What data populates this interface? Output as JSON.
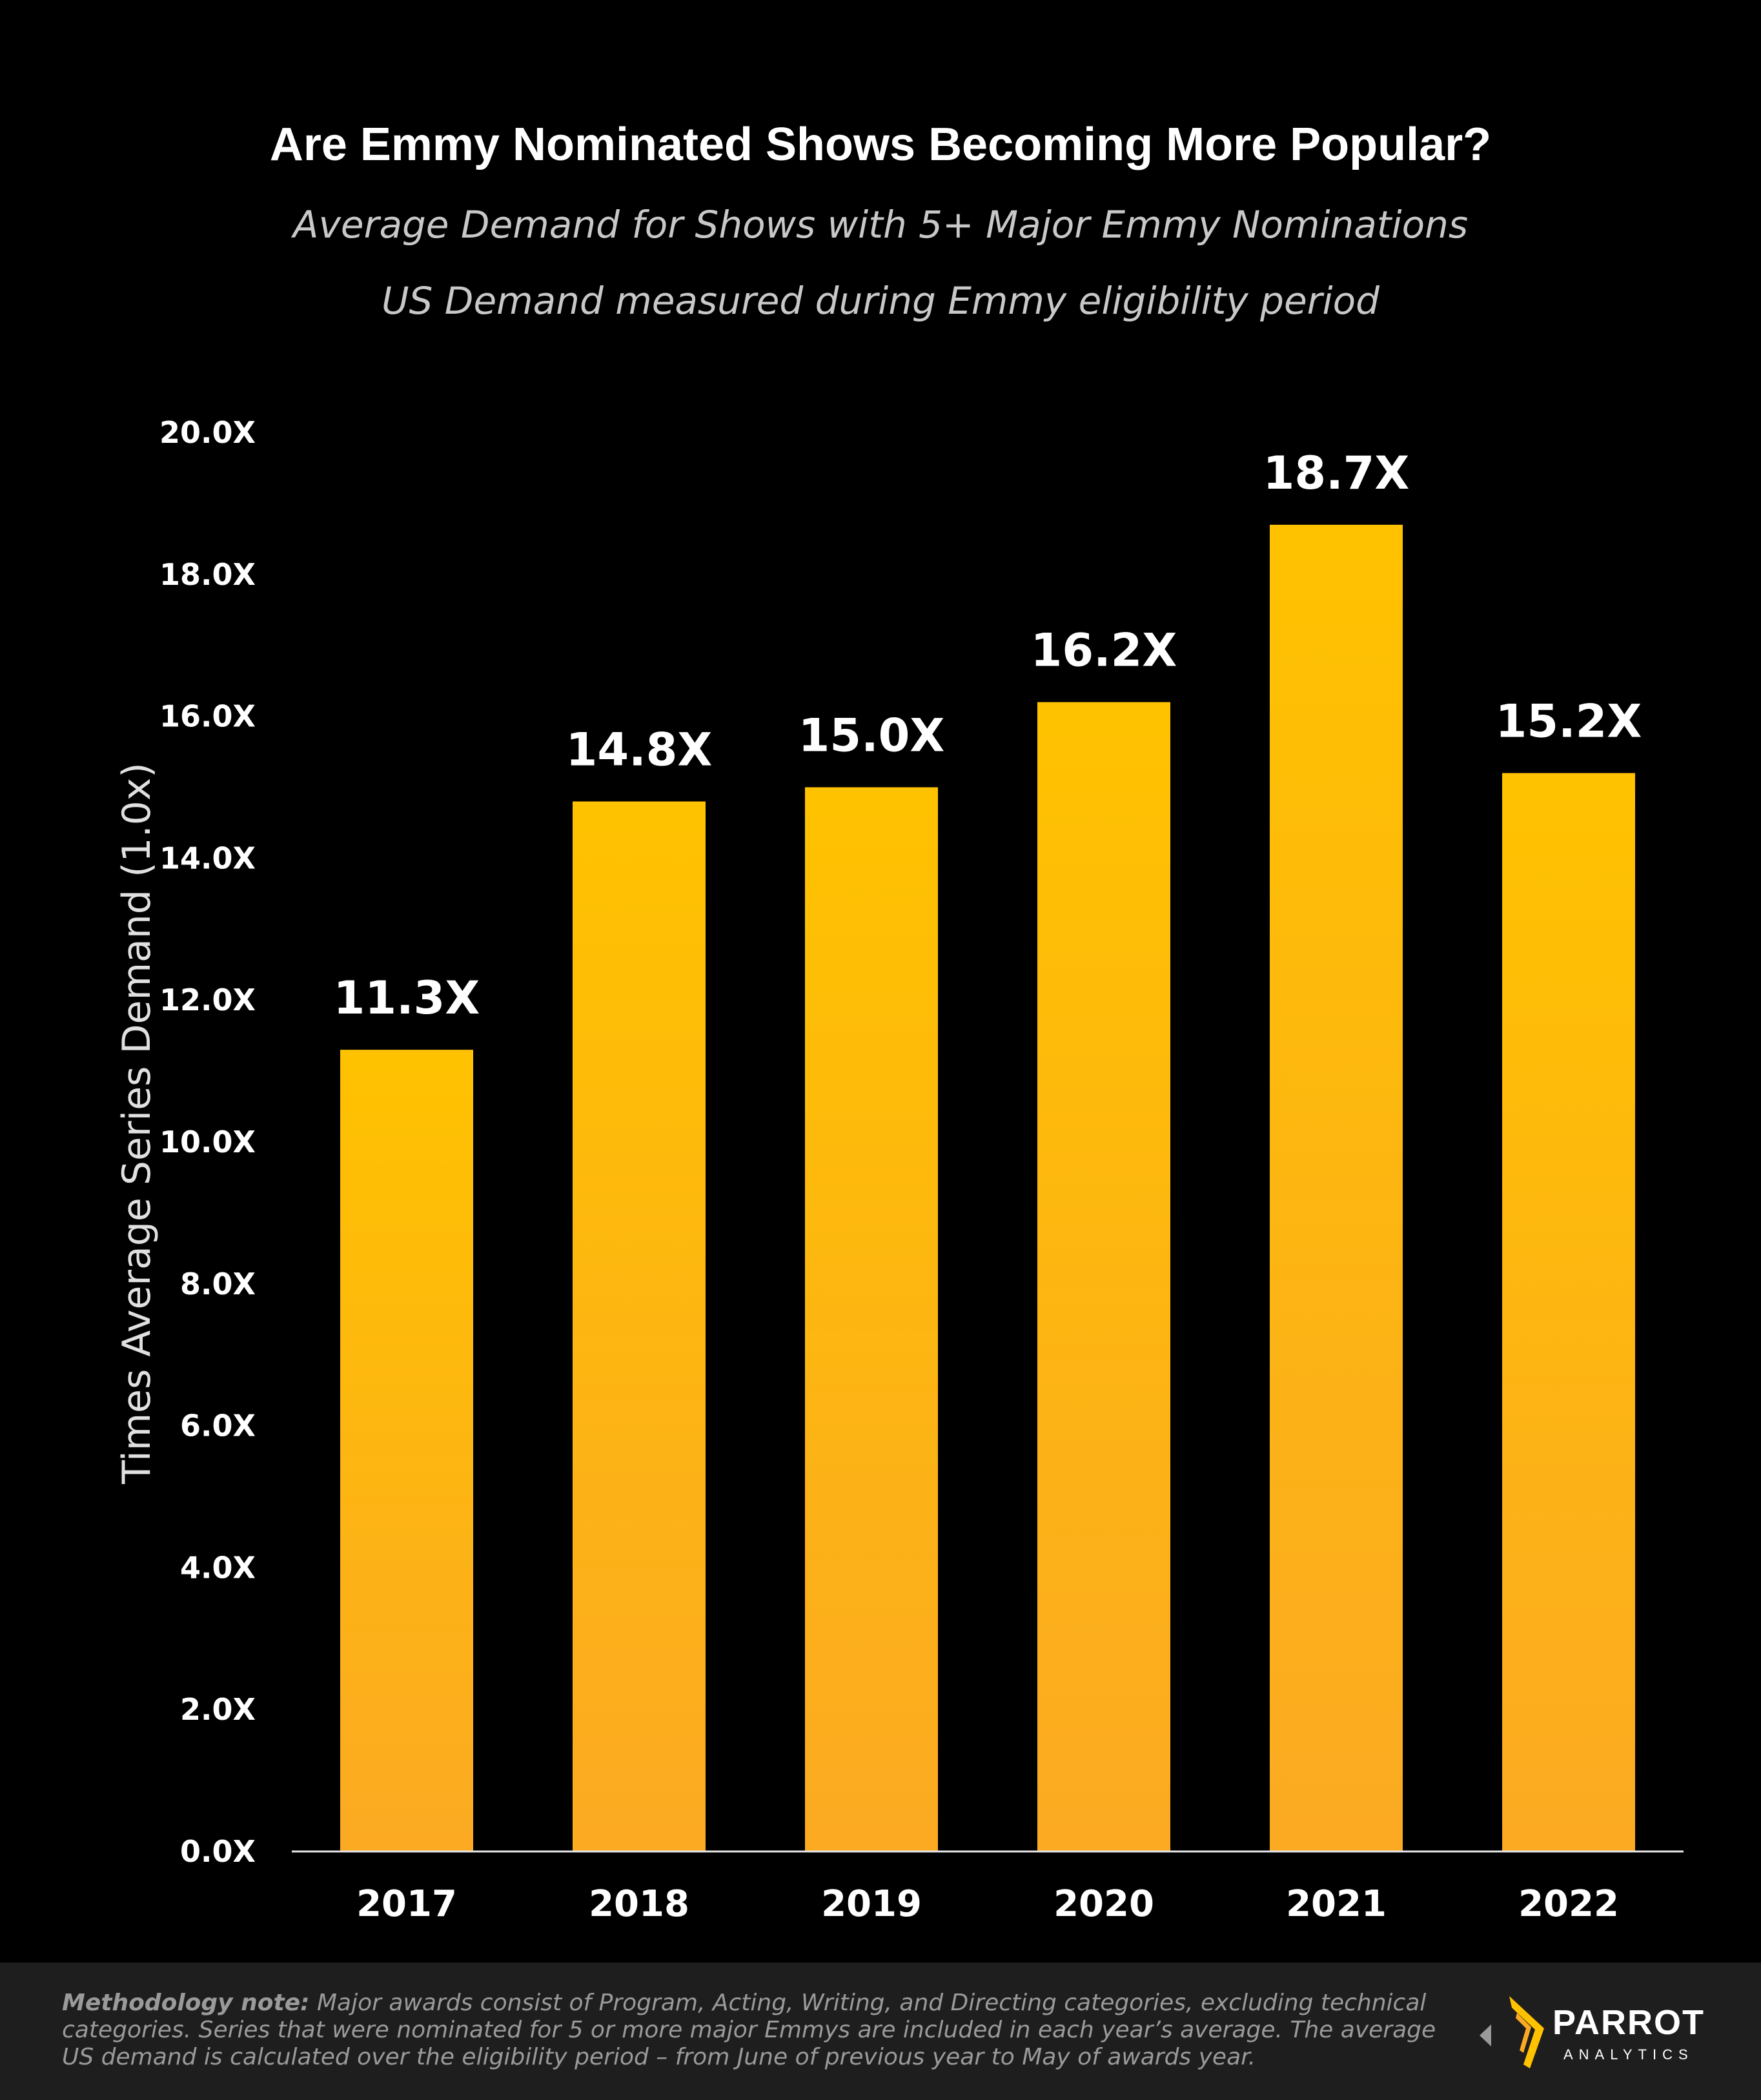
{
  "chart_data": {
    "type": "bar",
    "title": "Are Emmy Nominated Shows Becoming More Popular?",
    "subtitle": "Average Demand for Shows with 5+ Major Emmy Nominations",
    "subtitle2": "US Demand measured during Emmy eligibility period",
    "ylabel": "Times Average Series Demand (1.0x)",
    "xlabel": "",
    "categories": [
      "2017",
      "2018",
      "2019",
      "2020",
      "2021",
      "2022"
    ],
    "values": [
      11.3,
      14.8,
      15.0,
      16.2,
      18.7,
      15.2
    ],
    "value_labels": [
      "11.3X",
      "14.8X",
      "15.0X",
      "16.2X",
      "18.7X",
      "15.2X"
    ],
    "ylim": [
      0,
      20
    ],
    "yticks": [
      0,
      2,
      4,
      6,
      8,
      10,
      12,
      14,
      16,
      18,
      20
    ],
    "ytick_labels": [
      "0.0X",
      "2.0X",
      "4.0X",
      "6.0X",
      "8.0X",
      "10.0X",
      "12.0X",
      "14.0X",
      "16.0X",
      "18.0X",
      "20.0X"
    ],
    "grid": false,
    "colors": {
      "bar_top": "#FFC200",
      "bar_bottom": "#FBAA22",
      "background": "#000000"
    }
  },
  "footer": {
    "note_label": "Methodology note:",
    "note_text": " Major awards consist of Program, Acting, Writing, and Directing categories, excluding technical categories.  Series that were nominated for 5 or more major Emmys are included in each year’s average.  The average US demand is calculated over the eligibility period  – from June of previous year to May of awards year.",
    "logo_name": "PARROT",
    "logo_sub": "ANALYTICS"
  }
}
